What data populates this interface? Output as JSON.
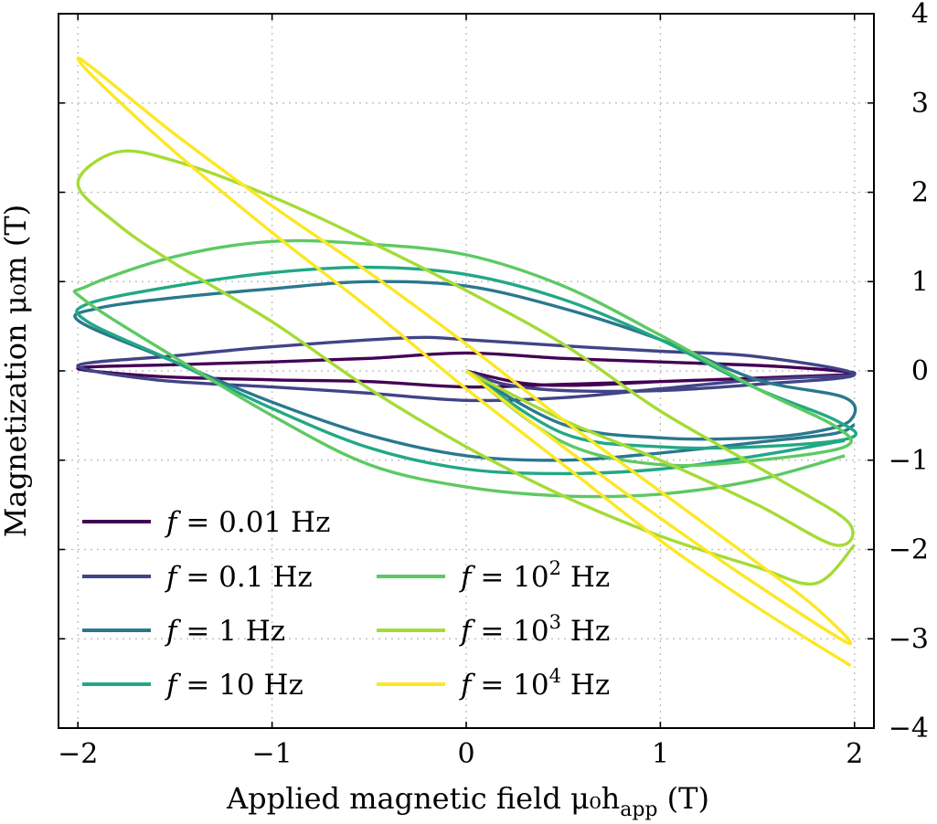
{
  "chart_data": {
    "type": "line",
    "xlabel": "Applied magnetic field μ₀h",
    "xlabel_sub": "app",
    "xlabel_unit": " (T)",
    "ylabel": "Magnetization μ₀m (T)",
    "xlim": [
      -2.1,
      2.1
    ],
    "ylim": [
      -4,
      4
    ],
    "x_ticks": [
      -2,
      -1,
      0,
      1,
      2
    ],
    "x_tick_labels": [
      "−2",
      "−1",
      "0",
      "1",
      "2"
    ],
    "y_ticks": [
      -4,
      -3,
      -2,
      -1,
      0,
      1,
      2,
      3,
      4
    ],
    "y_tick_labels": [
      "−4",
      "−3",
      "−2",
      "−1",
      "0",
      "1",
      "2",
      "3",
      "4"
    ],
    "y_axis_side": "right",
    "grid": true,
    "legend_position": "bottom-left",
    "series": [
      {
        "name": "f = 0.01 Hz",
        "prefix": "f = ",
        "base": "0.01",
        "exp": "",
        "unit": " Hz",
        "color": "#440154",
        "points": [
          [
            0.0,
            0.0
          ],
          [
            0.3,
            -0.14
          ],
          [
            0.6,
            -0.16
          ],
          [
            1.0,
            -0.12
          ],
          [
            1.5,
            -0.08
          ],
          [
            2.0,
            -0.03
          ],
          [
            1.6,
            0.05
          ],
          [
            1.0,
            0.1
          ],
          [
            0.5,
            0.14
          ],
          [
            0.0,
            0.2
          ],
          [
            -0.5,
            0.14
          ],
          [
            -1.0,
            0.1
          ],
          [
            -1.5,
            0.07
          ],
          [
            -2.0,
            0.03
          ],
          [
            -1.6,
            -0.06
          ],
          [
            -1.0,
            -0.1
          ],
          [
            -0.5,
            -0.12
          ],
          [
            0.0,
            -0.18
          ],
          [
            0.5,
            -0.15
          ],
          [
            1.0,
            -0.12
          ],
          [
            1.5,
            -0.08
          ],
          [
            2.0,
            -0.04
          ]
        ]
      },
      {
        "name": "f = 0.1 Hz",
        "prefix": "f = ",
        "base": "0.1",
        "exp": "",
        "unit": " Hz",
        "color": "#414487",
        "points": [
          [
            0.0,
            0.0
          ],
          [
            0.2,
            -0.15
          ],
          [
            0.5,
            -0.22
          ],
          [
            1.0,
            -0.22
          ],
          [
            1.5,
            -0.15
          ],
          [
            2.0,
            -0.04
          ],
          [
            1.5,
            0.16
          ],
          [
            1.0,
            0.22
          ],
          [
            0.5,
            0.28
          ],
          [
            0.0,
            0.35
          ],
          [
            -0.3,
            0.37
          ],
          [
            -1.0,
            0.27
          ],
          [
            -1.5,
            0.17
          ],
          [
            -2.0,
            0.06
          ],
          [
            -1.6,
            -0.1
          ],
          [
            -1.0,
            -0.18
          ],
          [
            -0.5,
            -0.25
          ],
          [
            0.0,
            -0.33
          ],
          [
            0.5,
            -0.3
          ],
          [
            1.0,
            -0.2
          ],
          [
            1.5,
            -0.1
          ],
          [
            2.0,
            -0.05
          ]
        ]
      },
      {
        "name": "f = 1 Hz",
        "prefix": "f = ",
        "base": "1",
        "exp": "",
        "unit": " Hz",
        "color": "#2a788e",
        "points": [
          [
            0.0,
            0.0
          ],
          [
            0.5,
            -0.6
          ],
          [
            1.0,
            -0.75
          ],
          [
            1.5,
            -0.75
          ],
          [
            1.8,
            -0.68
          ],
          [
            1.98,
            -0.55
          ],
          [
            1.95,
            -0.3
          ],
          [
            1.5,
            -0.1
          ],
          [
            1.0,
            0.35
          ],
          [
            0.5,
            0.7
          ],
          [
            0.0,
            0.95
          ],
          [
            -0.5,
            1.0
          ],
          [
            -1.0,
            0.92
          ],
          [
            -1.5,
            0.82
          ],
          [
            -1.9,
            0.7
          ],
          [
            -1.99,
            0.55
          ],
          [
            -1.5,
            0.1
          ],
          [
            -1.0,
            -0.35
          ],
          [
            -0.5,
            -0.72
          ],
          [
            0.0,
            -0.95
          ],
          [
            0.5,
            -1.0
          ],
          [
            1.0,
            -0.92
          ],
          [
            1.5,
            -0.8
          ],
          [
            1.9,
            -0.7
          ],
          [
            2.0,
            -0.6
          ]
        ]
      },
      {
        "name": "f = 10 Hz",
        "prefix": "f = ",
        "base": "10",
        "exp": "",
        "unit": " Hz",
        "color": "#22a884",
        "points": [
          [
            0.0,
            0.0
          ],
          [
            0.5,
            -0.7
          ],
          [
            1.0,
            -0.85
          ],
          [
            1.5,
            -0.85
          ],
          [
            1.98,
            -0.75
          ],
          [
            1.9,
            -0.55
          ],
          [
            1.5,
            -0.2
          ],
          [
            1.0,
            0.35
          ],
          [
            0.5,
            0.8
          ],
          [
            0.0,
            1.08
          ],
          [
            -0.5,
            1.16
          ],
          [
            -1.0,
            1.1
          ],
          [
            -1.5,
            0.95
          ],
          [
            -1.95,
            0.75
          ],
          [
            -1.95,
            0.55
          ],
          [
            -1.5,
            0.1
          ],
          [
            -1.0,
            -0.42
          ],
          [
            -0.5,
            -0.86
          ],
          [
            0.0,
            -1.1
          ],
          [
            0.5,
            -1.15
          ],
          [
            1.0,
            -1.1
          ],
          [
            1.5,
            -0.95
          ],
          [
            1.95,
            -0.78
          ]
        ]
      },
      {
        "name": "f = 10^2 Hz",
        "prefix": "f = ",
        "base": "10",
        "exp": "2",
        "unit": " Hz",
        "color": "#5ec962",
        "points": [
          [
            0.0,
            0.0
          ],
          [
            0.5,
            -0.8
          ],
          [
            1.0,
            -1.05
          ],
          [
            1.5,
            -1.0
          ],
          [
            1.95,
            -0.85
          ],
          [
            1.9,
            -0.62
          ],
          [
            1.5,
            -0.2
          ],
          [
            1.0,
            0.4
          ],
          [
            0.5,
            0.95
          ],
          [
            0.0,
            1.3
          ],
          [
            -0.5,
            1.42
          ],
          [
            -1.0,
            1.45
          ],
          [
            -1.5,
            1.28
          ],
          [
            -1.95,
            0.95
          ],
          [
            -1.97,
            0.8
          ],
          [
            -1.5,
            0.15
          ],
          [
            -1.0,
            -0.5
          ],
          [
            -0.5,
            -1.05
          ],
          [
            0.0,
            -1.3
          ],
          [
            0.5,
            -1.4
          ],
          [
            1.0,
            -1.38
          ],
          [
            1.5,
            -1.22
          ],
          [
            1.95,
            -0.95
          ]
        ]
      },
      {
        "name": "f = 10^3 Hz",
        "prefix": "f = ",
        "base": "10",
        "exp": "3",
        "unit": " Hz",
        "color": "#a5db36",
        "points": [
          [
            0.0,
            0.0
          ],
          [
            0.5,
            -0.55
          ],
          [
            1.0,
            -1.0
          ],
          [
            1.5,
            -1.5
          ],
          [
            1.9,
            -1.95
          ],
          [
            1.97,
            -1.7
          ],
          [
            1.6,
            -1.2
          ],
          [
            1.0,
            -0.45
          ],
          [
            0.5,
            0.3
          ],
          [
            0.0,
            0.9
          ],
          [
            -0.5,
            1.45
          ],
          [
            -1.0,
            1.95
          ],
          [
            -1.5,
            2.35
          ],
          [
            -1.8,
            2.45
          ],
          [
            -2.0,
            2.1
          ],
          [
            -1.8,
            1.65
          ],
          [
            -1.5,
            1.2
          ],
          [
            -1.0,
            0.55
          ],
          [
            -0.5,
            -0.2
          ],
          [
            0.0,
            -0.85
          ],
          [
            0.5,
            -1.4
          ],
          [
            1.0,
            -1.85
          ],
          [
            1.5,
            -2.2
          ],
          [
            1.8,
            -2.38
          ],
          [
            2.0,
            -1.95
          ]
        ]
      },
      {
        "name": "f = 10^4 Hz",
        "prefix": "f = ",
        "base": "10",
        "exp": "4",
        "unit": " Hz",
        "color": "#fde725",
        "points": [
          [
            0.0,
            0.0
          ],
          [
            0.5,
            -0.85
          ],
          [
            1.0,
            -1.65
          ],
          [
            1.5,
            -2.4
          ],
          [
            1.97,
            -3.05
          ],
          [
            1.8,
            -2.65
          ],
          [
            1.5,
            -2.15
          ],
          [
            1.0,
            -1.35
          ],
          [
            0.5,
            -0.55
          ],
          [
            0.0,
            0.3
          ],
          [
            -0.5,
            1.1
          ],
          [
            -1.0,
            1.85
          ],
          [
            -1.5,
            2.65
          ],
          [
            -1.9,
            3.35
          ],
          [
            -2.0,
            3.5
          ],
          [
            -1.9,
            3.25
          ],
          [
            -1.5,
            2.45
          ],
          [
            -1.0,
            1.55
          ],
          [
            -0.5,
            0.7
          ],
          [
            0.0,
            -0.2
          ],
          [
            0.5,
            -1.05
          ],
          [
            1.0,
            -1.9
          ],
          [
            1.5,
            -2.65
          ],
          [
            1.98,
            -3.3
          ]
        ]
      }
    ]
  }
}
